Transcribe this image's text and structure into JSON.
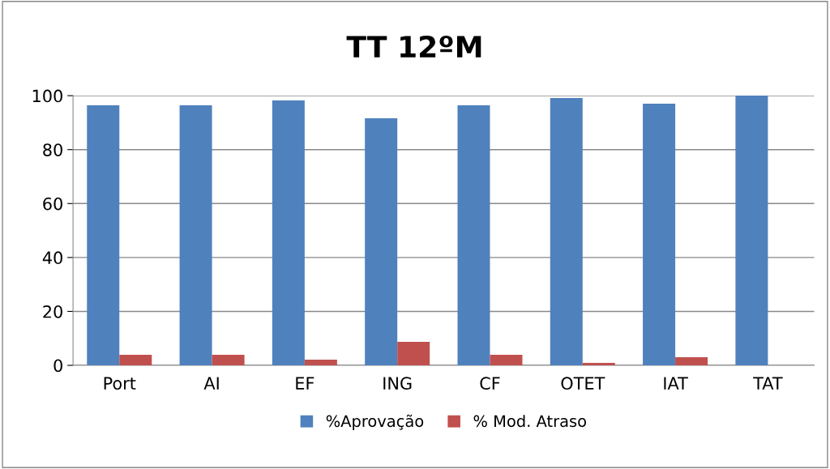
{
  "chart_data": {
    "type": "bar",
    "title": "TT 12ºM",
    "categories": [
      "Port",
      "AI",
      "EF",
      "ING",
      "CF",
      "OTET",
      "IAT",
      "TAT"
    ],
    "series": [
      {
        "name": "%Aprovação",
        "color": "#4f81bd",
        "values": [
          96.4,
          96.4,
          98.2,
          91.6,
          96.4,
          99.1,
          97.0,
          100
        ]
      },
      {
        "name": "% Mod. Atraso",
        "color": "#c0504d",
        "values": [
          3.9,
          3.9,
          2.1,
          8.7,
          3.9,
          0.9,
          3.0,
          0
        ]
      }
    ],
    "ylim": [
      0,
      100
    ],
    "yticks": [
      0,
      20,
      40,
      60,
      80,
      100
    ],
    "grid": "y",
    "legend": "bottom"
  }
}
